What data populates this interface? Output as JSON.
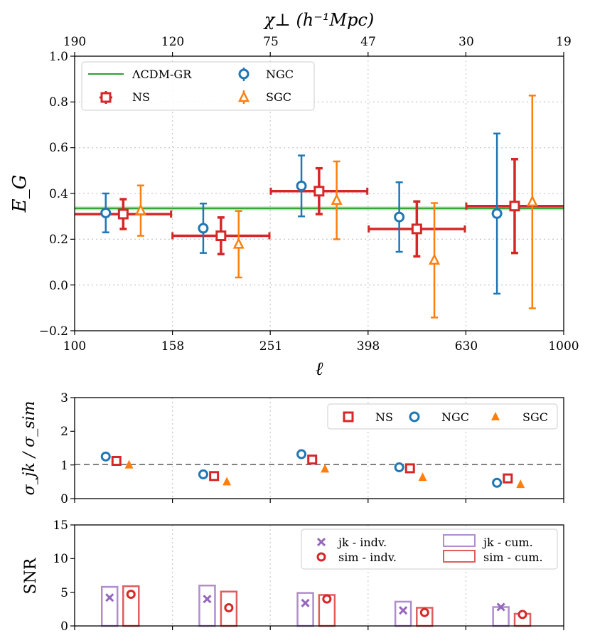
{
  "colors": {
    "ns": "#d62728",
    "ngc": "#1f77b4",
    "sgc": "#ff7f0e",
    "model": "#2ca02c",
    "jk": "#9467bd",
    "sim": "#d62728",
    "ref": "#808080"
  },
  "chart_data": [
    {
      "type": "scatter",
      "id": "eg",
      "ylabel": "E_G",
      "xlabel": "ℓ",
      "top_axis_label": "χ⊥ (h⁻¹Mpc)",
      "ylim": [
        -0.2,
        1.0
      ],
      "yticks": [
        "−0.2",
        "0.0",
        "0.2",
        "0.4",
        "0.6",
        "0.8",
        "1.0"
      ],
      "xticks": [
        "100",
        "158",
        "251",
        "398",
        "630",
        "1000"
      ],
      "top_ticks": [
        "190",
        "120",
        "75",
        "47",
        "30",
        "19"
      ],
      "model": {
        "name": "ΛCDM-GR",
        "value": 0.335,
        "band": [
          0.327,
          0.343
        ]
      },
      "bins": [
        [
          100,
          158
        ],
        [
          158,
          251
        ],
        [
          251,
          398
        ],
        [
          398,
          630
        ],
        [
          630,
          1000
        ]
      ],
      "series": [
        {
          "name": "NS",
          "marker": "square",
          "values": [
            0.31,
            0.215,
            0.41,
            0.245,
            0.345
          ],
          "err": [
            0.065,
            0.08,
            0.1,
            0.12,
            0.205
          ]
        },
        {
          "name": "NGC",
          "marker": "circle",
          "values": [
            0.315,
            0.248,
            0.433,
            0.297,
            0.312
          ],
          "err": [
            0.085,
            0.108,
            0.133,
            0.152,
            0.35
          ]
        },
        {
          "name": "SGC",
          "marker": "triangle",
          "values": [
            0.325,
            0.178,
            0.37,
            0.108,
            0.363
          ],
          "err": [
            0.11,
            0.145,
            0.17,
            0.25,
            0.465
          ]
        }
      ],
      "legend": [
        "ΛCDM-GR",
        "NGC",
        "NS",
        "SGC"
      ]
    },
    {
      "type": "scatter",
      "id": "ratio",
      "ylabel": "σ_jk / σ_sim",
      "ylim": [
        0,
        3
      ],
      "yticks": [
        "0",
        "1",
        "2",
        "3"
      ],
      "reference": 1,
      "series": [
        {
          "name": "NS",
          "marker": "square",
          "values": [
            1.12,
            0.67,
            1.16,
            0.9,
            0.6
          ]
        },
        {
          "name": "NGC",
          "marker": "circle",
          "values": [
            1.25,
            0.72,
            1.32,
            0.93,
            0.47
          ]
        },
        {
          "name": "SGC",
          "marker": "triangle",
          "values": [
            1.0,
            0.5,
            0.88,
            0.63,
            0.42
          ]
        }
      ],
      "legend": [
        "NS",
        "NGC",
        "SGC"
      ]
    },
    {
      "type": "bar",
      "id": "snr",
      "ylabel": "SNR",
      "ylim": [
        0,
        15
      ],
      "yticks": [
        "0",
        "5",
        "10",
        "15"
      ],
      "series": [
        {
          "name": "jk - indv.",
          "marker": "x",
          "values": [
            4.2,
            4.0,
            3.4,
            2.3,
            2.8
          ]
        },
        {
          "name": "sim - indv.",
          "marker": "circle",
          "values": [
            4.7,
            2.7,
            4.0,
            2.0,
            1.7
          ]
        },
        {
          "name": "jk - cum.",
          "marker": "bar",
          "values": [
            5.8,
            6.0,
            4.9,
            3.6,
            2.8
          ]
        },
        {
          "name": "sim - cum.",
          "marker": "bar",
          "values": [
            5.9,
            5.1,
            4.6,
            2.7,
            1.8
          ]
        }
      ],
      "legend": [
        "jk - indv.",
        "sim - indv.",
        "jk - cum.",
        "sim - cum."
      ]
    }
  ]
}
